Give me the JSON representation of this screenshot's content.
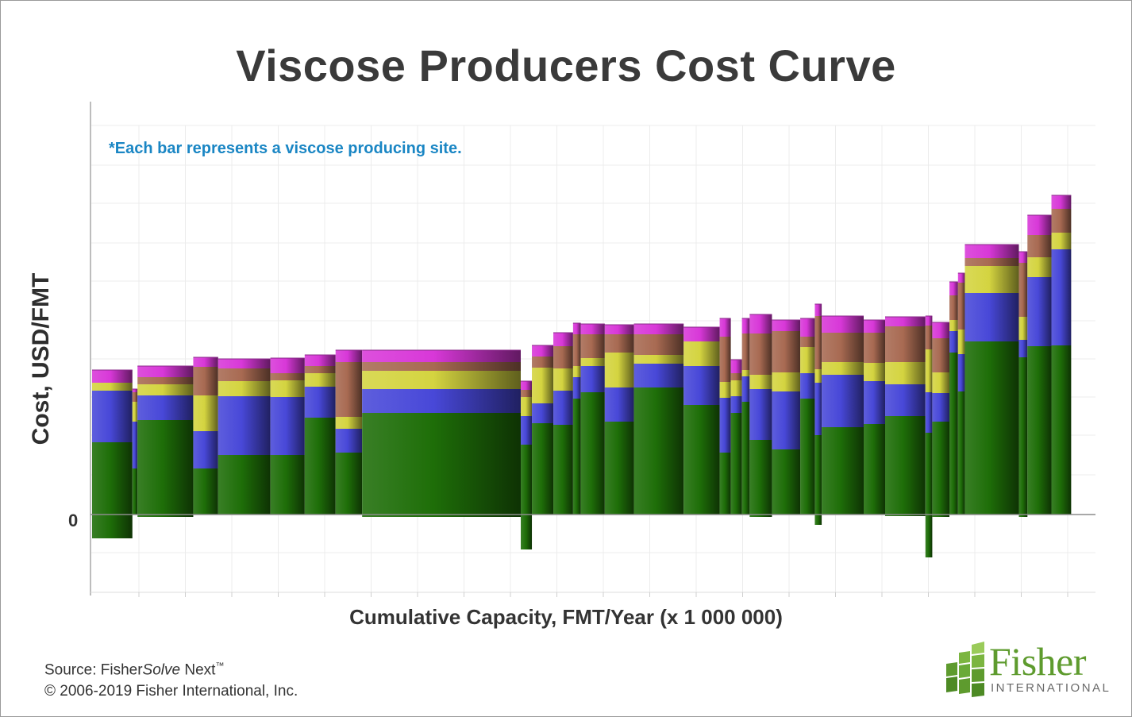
{
  "chart_data": {
    "type": "bar",
    "subtype": "stacked variable-width cost curve",
    "title": "Viscose Producers Cost Curve",
    "xlabel": "Cumulative Capacity, FMT/Year (x 1 000 000)",
    "ylabel": "Cost, USD/FMT",
    "y_tick_labels": [
      "0"
    ],
    "annotation": "*Each bar represents a viscose producing site.",
    "grid": true,
    "legend": "none",
    "series_colors": {
      "green": "#1e6e08",
      "blue": "#4848d8",
      "yellow": "#d4d440",
      "brown": "#a86a52",
      "magenta": "#d838d8"
    },
    "x_units": "relative cumulative capacity (0–1.31)",
    "y_units": "relative cost (0 = zero line)",
    "sites": [
      {
        "x0": 0.0,
        "x1": 0.047,
        "neg": -0.03,
        "green": 0.091,
        "blue": 0.065,
        "yellow": 0.01,
        "brown": 0.0,
        "magenta": 0.016
      },
      {
        "x0": 0.047,
        "x1": 0.053,
        "neg": 0.0,
        "green": 0.058,
        "blue": 0.059,
        "yellow": 0.025,
        "brown": 0.012,
        "magenta": 0.004
      },
      {
        "x0": 0.053,
        "x1": 0.118,
        "neg": -0.003,
        "green": 0.119,
        "blue": 0.031,
        "yellow": 0.014,
        "brown": 0.009,
        "magenta": 0.014
      },
      {
        "x0": 0.118,
        "x1": 0.147,
        "neg": 0.0,
        "green": 0.058,
        "blue": 0.047,
        "yellow": 0.045,
        "brown": 0.036,
        "magenta": 0.012
      },
      {
        "x0": 0.147,
        "x1": 0.208,
        "neg": 0.0,
        "green": 0.075,
        "blue": 0.074,
        "yellow": 0.019,
        "brown": 0.016,
        "magenta": 0.012
      },
      {
        "x0": 0.208,
        "x1": 0.248,
        "neg": 0.0,
        "green": 0.075,
        "blue": 0.073,
        "yellow": 0.021,
        "brown": 0.009,
        "magenta": 0.019
      },
      {
        "x0": 0.248,
        "x1": 0.284,
        "neg": 0.0,
        "green": 0.122,
        "blue": 0.039,
        "yellow": 0.017,
        "brown": 0.009,
        "magenta": 0.014
      },
      {
        "x0": 0.284,
        "x1": 0.315,
        "neg": 0.0,
        "green": 0.078,
        "blue": 0.03,
        "yellow": 0.015,
        "brown": 0.069,
        "magenta": 0.015
      },
      {
        "x0": 0.315,
        "x1": 0.5,
        "neg": -0.003,
        "green": 0.128,
        "blue": 0.03,
        "yellow": 0.023,
        "brown": 0.011,
        "magenta": 0.015
      },
      {
        "x0": 0.5,
        "x1": 0.513,
        "neg": -0.044,
        "green": 0.088,
        "blue": 0.036,
        "yellow": 0.024,
        "brown": 0.009,
        "magenta": 0.011
      },
      {
        "x0": 0.513,
        "x1": 0.538,
        "neg": 0.0,
        "green": 0.115,
        "blue": 0.025,
        "yellow": 0.045,
        "brown": 0.014,
        "magenta": 0.014
      },
      {
        "x0": 0.538,
        "x1": 0.561,
        "neg": 0.0,
        "green": 0.113,
        "blue": 0.043,
        "yellow": 0.028,
        "brown": 0.028,
        "magenta": 0.017
      },
      {
        "x0": 0.561,
        "x1": 0.57,
        "neg": 0.0,
        "green": 0.146,
        "blue": 0.027,
        "yellow": 0.014,
        "brown": 0.04,
        "magenta": 0.014
      },
      {
        "x0": 0.57,
        "x1": 0.598,
        "neg": 0.0,
        "green": 0.154,
        "blue": 0.033,
        "yellow": 0.01,
        "brown": 0.03,
        "magenta": 0.013
      },
      {
        "x0": 0.598,
        "x1": 0.632,
        "neg": 0.0,
        "green": 0.117,
        "blue": 0.043,
        "yellow": 0.044,
        "brown": 0.023,
        "magenta": 0.012
      },
      {
        "x0": 0.632,
        "x1": 0.69,
        "neg": 0.0,
        "green": 0.16,
        "blue": 0.03,
        "yellow": 0.011,
        "brown": 0.026,
        "magenta": 0.013
      },
      {
        "x0": 0.69,
        "x1": 0.732,
        "neg": 0.0,
        "green": 0.138,
        "blue": 0.049,
        "yellow": 0.031,
        "brown": 0.0,
        "magenta": 0.018
      },
      {
        "x0": 0.732,
        "x1": 0.745,
        "neg": 0.0,
        "green": 0.078,
        "blue": 0.069,
        "yellow": 0.02,
        "brown": 0.057,
        "magenta": 0.023
      },
      {
        "x0": 0.745,
        "x1": 0.758,
        "neg": 0.0,
        "green": 0.128,
        "blue": 0.021,
        "yellow": 0.02,
        "brown": 0.009,
        "magenta": 0.017
      },
      {
        "x0": 0.758,
        "x1": 0.767,
        "neg": 0.0,
        "green": 0.142,
        "blue": 0.032,
        "yellow": 0.008,
        "brown": 0.046,
        "magenta": 0.019
      },
      {
        "x0": 0.767,
        "x1": 0.793,
        "neg": -0.003,
        "green": 0.094,
        "blue": 0.064,
        "yellow": 0.018,
        "brown": 0.052,
        "magenta": 0.024
      },
      {
        "x0": 0.793,
        "x1": 0.826,
        "neg": 0.0,
        "green": 0.082,
        "blue": 0.073,
        "yellow": 0.024,
        "brown": 0.052,
        "magenta": 0.014
      },
      {
        "x0": 0.826,
        "x1": 0.843,
        "neg": 0.0,
        "green": 0.146,
        "blue": 0.032,
        "yellow": 0.033,
        "brown": 0.013,
        "magenta": 0.023
      },
      {
        "x0": 0.843,
        "x1": 0.851,
        "neg": -0.013,
        "green": 0.1,
        "blue": 0.066,
        "yellow": 0.017,
        "brown": 0.067,
        "magenta": 0.015
      },
      {
        "x0": 0.851,
        "x1": 0.9,
        "neg": 0.0,
        "green": 0.11,
        "blue": 0.066,
        "yellow": 0.016,
        "brown": 0.037,
        "magenta": 0.021
      },
      {
        "x0": 0.9,
        "x1": 0.925,
        "neg": 0.0,
        "green": 0.114,
        "blue": 0.054,
        "yellow": 0.023,
        "brown": 0.038,
        "magenta": 0.016
      },
      {
        "x0": 0.925,
        "x1": 0.972,
        "neg": -0.002,
        "green": 0.124,
        "blue": 0.04,
        "yellow": 0.028,
        "brown": 0.045,
        "magenta": 0.012
      },
      {
        "x0": 0.972,
        "x1": 0.98,
        "neg": -0.054,
        "green": 0.103,
        "blue": 0.051,
        "yellow": 0.054,
        "brown": 0.03,
        "magenta": 0.012
      },
      {
        "x0": 0.98,
        "x1": 1.0,
        "neg": -0.003,
        "green": 0.117,
        "blue": 0.036,
        "yellow": 0.026,
        "brown": 0.043,
        "magenta": 0.02
      },
      {
        "x0": 1.0,
        "x1": 1.01,
        "neg": 0.0,
        "green": 0.204,
        "blue": 0.027,
        "yellow": 0.014,
        "brown": 0.031,
        "magenta": 0.017
      },
      {
        "x0": 1.01,
        "x1": 1.018,
        "neg": 0.0,
        "green": 0.155,
        "blue": 0.047,
        "yellow": 0.031,
        "brown": 0.059,
        "magenta": 0.012
      },
      {
        "x0": 1.018,
        "x1": 1.081,
        "neg": 0.0,
        "green": 0.218,
        "blue": 0.061,
        "yellow": 0.034,
        "brown": 0.01,
        "magenta": 0.017
      },
      {
        "x0": 1.081,
        "x1": 1.091,
        "neg": -0.003,
        "green": 0.198,
        "blue": 0.022,
        "yellow": 0.029,
        "brown": 0.068,
        "magenta": 0.014
      },
      {
        "x0": 1.091,
        "x1": 1.119,
        "neg": 0.0,
        "green": 0.212,
        "blue": 0.087,
        "yellow": 0.025,
        "brown": 0.028,
        "magenta": 0.025
      },
      {
        "x0": 1.119,
        "x1": 1.142,
        "neg": 0.0,
        "green": 0.213,
        "blue": 0.121,
        "yellow": 0.021,
        "brown": 0.03,
        "magenta": 0.017
      }
    ]
  },
  "title": "Viscose Producers Cost Curve",
  "source_line": "Source: Fisher",
  "source_italic": "Solve",
  "source_tail": " Next",
  "source_tm": "™",
  "copyright": "© 2006-2019 Fisher International, Inc.",
  "logo": {
    "name": "Fisher",
    "sub": "INTERNATIONAL",
    "brand_color": "#5e9b2e"
  },
  "zero_label": "0"
}
